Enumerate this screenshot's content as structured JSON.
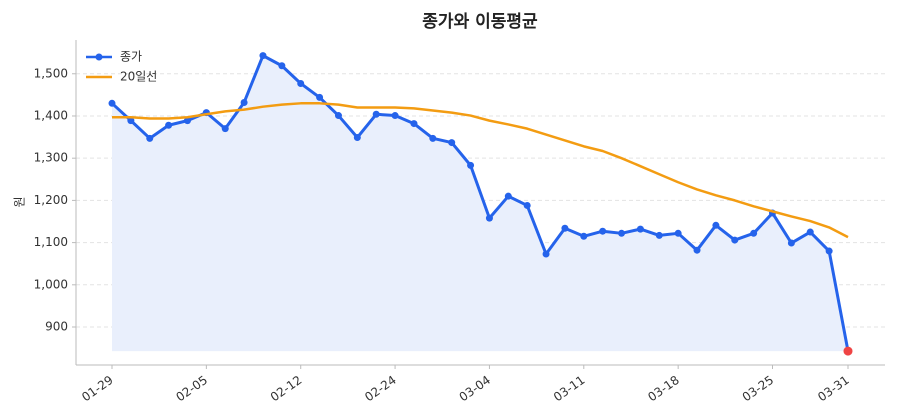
{
  "chart_data": {
    "type": "line",
    "title": "종가와 이동평균",
    "y_label": "원",
    "categories": [
      "01-29",
      null,
      null,
      null,
      null,
      "02-05",
      null,
      null,
      null,
      null,
      "02-12",
      null,
      null,
      null,
      null,
      "02-24",
      null,
      null,
      null,
      null,
      "03-04",
      null,
      null,
      null,
      null,
      "03-11",
      null,
      null,
      null,
      null,
      "03-18",
      null,
      null,
      null,
      null,
      "03-25",
      null,
      null,
      null,
      "03-31"
    ],
    "series": [
      {
        "name": "종가",
        "color": "#2563eb",
        "fill": "#e9effc",
        "last_color": "#ef4444",
        "values": [
          1430,
          1389,
          1347,
          1378,
          1389,
          1408,
          1370,
          1432,
          1543,
          1519,
          1477,
          1444,
          1401,
          1349,
          1404,
          1401,
          1382,
          1347,
          1337,
          1283,
          1158,
          1210,
          1188,
          1073,
          1134,
          1115,
          1127,
          1122,
          1132,
          1117,
          1122,
          1082,
          1141,
          1106,
          1122,
          1170,
          1099,
          1125,
          1080,
          843
        ]
      },
      {
        "name": "20일선",
        "color": "#f39c12",
        "values": [
          1397,
          1397,
          1394,
          1394,
          1397,
          1404,
          1411,
          1415,
          1422,
          1427,
          1430,
          1430,
          1427,
          1420,
          1420,
          1420,
          1418,
          1413,
          1408,
          1401,
          1389,
          1380,
          1370,
          1356,
          1342,
          1328,
          1317,
          1300,
          1281,
          1262,
          1243,
          1226,
          1212,
          1200,
          1186,
          1174,
          1162,
          1151,
          1136,
          1113
        ]
      }
    ],
    "ylim": [
      810,
      1580
    ],
    "yticks": [
      900,
      {
        "value": 1000,
        "label": "1,000"
      },
      {
        "value": 1100,
        "label": "1,100"
      },
      {
        "value": 1200,
        "label": "1,200"
      },
      {
        "value": 1300,
        "label": "1,300"
      },
      {
        "value": 1400,
        "label": "1,400"
      },
      {
        "value": 1500,
        "label": "1,500"
      }
    ],
    "grid": true,
    "legend": "upper left"
  }
}
